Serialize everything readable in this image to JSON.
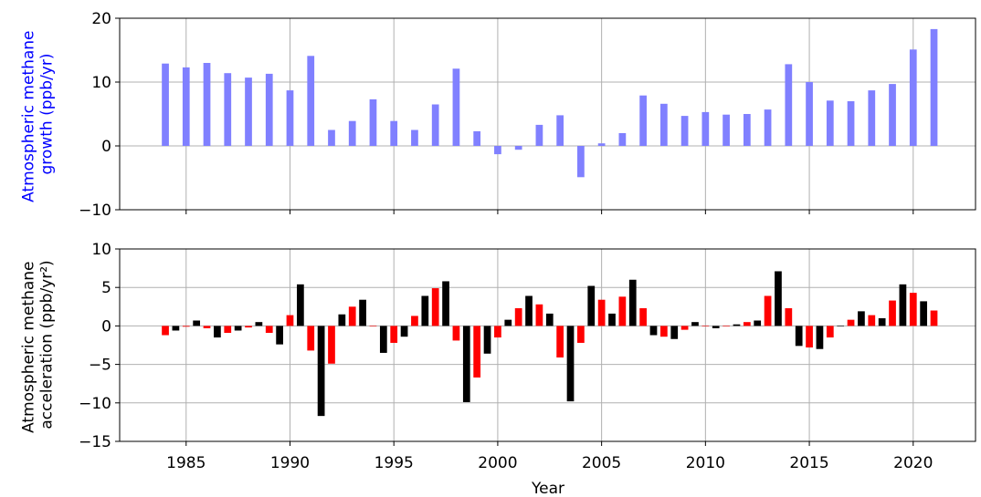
{
  "chart_data": [
    {
      "type": "bar",
      "ylabel": "Atmospheric methane\ngrowth (ppb/yr)",
      "xlabel": "",
      "xlim": [
        1981.8,
        2023.0
      ],
      "ylim": [
        -10,
        20
      ],
      "yticks": [
        -10,
        0,
        10,
        20
      ],
      "xticks": [
        1985,
        1990,
        1995,
        2000,
        2005,
        2010,
        2015,
        2020
      ],
      "grid": true,
      "colors": {
        "bars": "#8080ff",
        "ylabel": "#0000ff"
      },
      "series": [
        {
          "x": [
            1984,
            1985,
            1986,
            1987,
            1988,
            1989,
            1990,
            1991,
            1992,
            1993,
            1994,
            1995,
            1996,
            1997,
            1998,
            1999,
            2000,
            2001,
            2002,
            2003,
            2004,
            2005,
            2006,
            2007,
            2008,
            2009,
            2010,
            2011,
            2012,
            2013,
            2014,
            2015,
            2016,
            2017,
            2018,
            2019,
            2020,
            2021
          ],
          "values": [
            12.9,
            12.3,
            13.0,
            11.4,
            10.7,
            11.3,
            8.7,
            14.1,
            2.5,
            3.9,
            7.3,
            3.9,
            2.5,
            6.5,
            12.1,
            2.3,
            -1.3,
            -0.6,
            3.3,
            4.8,
            -4.9,
            0.4,
            2.0,
            7.9,
            6.6,
            4.7,
            5.3,
            4.9,
            5.0,
            5.7,
            12.8,
            10.0,
            7.1,
            7.0,
            8.7,
            9.7,
            15.1,
            18.3
          ]
        }
      ]
    },
    {
      "type": "bar",
      "ylabel": "Atmospheric methane\nacceleration (ppb/yr²)",
      "xlabel": "Year",
      "xlim": [
        1981.8,
        2023.0
      ],
      "ylim": [
        -15,
        10
      ],
      "yticks": [
        -15,
        -10,
        -5,
        0,
        5,
        10
      ],
      "xticks": [
        1985,
        1990,
        1995,
        2000,
        2005,
        2010,
        2015,
        2020
      ],
      "xticklabels": [
        "1985",
        "1990",
        "1995",
        "2000",
        "2005",
        "2010",
        "2015",
        "2020"
      ],
      "grid": true,
      "colors": {
        "red": "#ff0000",
        "black": "#000000"
      },
      "series": [
        {
          "color": "red",
          "x": [
            1984,
            1985,
            1986,
            1987,
            1988,
            1989,
            1990,
            1991,
            1992,
            1993,
            1994,
            1995,
            1996,
            1997,
            1998,
            1999,
            2000,
            2001,
            2002,
            2003,
            2004,
            2005,
            2006,
            2007,
            2008,
            2009,
            2010,
            2011,
            2012,
            2013,
            2014,
            2015,
            2016,
            2017,
            2018,
            2019,
            2020,
            2021
          ],
          "values": [
            -1.2,
            -0.1,
            -0.3,
            -0.9,
            -0.2,
            -0.9,
            1.4,
            -3.2,
            -4.9,
            2.5,
            0.0,
            -2.2,
            1.3,
            4.9,
            -1.9,
            -6.7,
            -1.5,
            2.3,
            2.8,
            -4.1,
            -2.2,
            3.4,
            3.8,
            2.3,
            -1.4,
            -0.5,
            0.0,
            0.0,
            0.5,
            3.9,
            2.3,
            -2.8,
            -1.5,
            0.8,
            1.4,
            3.3,
            4.3,
            2.0
          ]
        },
        {
          "color": "black",
          "x": [
            1984.5,
            1985.5,
            1986.5,
            1987.5,
            1988.5,
            1989.5,
            1990.5,
            1991.5,
            1992.5,
            1993.5,
            1994.5,
            1995.5,
            1996.5,
            1997.5,
            1998.5,
            1999.5,
            2000.5,
            2001.5,
            2002.5,
            2003.5,
            2004.5,
            2005.5,
            2006.5,
            2007.5,
            2008.5,
            2009.5,
            2010.5,
            2011.5,
            2012.5,
            2013.5,
            2014.5,
            2015.5,
            2016.5,
            2017.5,
            2018.5,
            2019.5,
            2020.5
          ],
          "values": [
            -0.6,
            0.7,
            -1.5,
            -0.6,
            0.5,
            -2.4,
            5.4,
            -11.7,
            1.5,
            3.4,
            -3.5,
            -1.4,
            3.9,
            5.8,
            -9.9,
            -3.6,
            0.8,
            3.9,
            1.6,
            -9.8,
            5.2,
            1.6,
            6.0,
            -1.2,
            -1.7,
            0.5,
            -0.3,
            0.2,
            0.7,
            7.1,
            -2.6,
            -3.0,
            0.0,
            1.9,
            1.0,
            5.4,
            3.2
          ]
        }
      ]
    }
  ]
}
